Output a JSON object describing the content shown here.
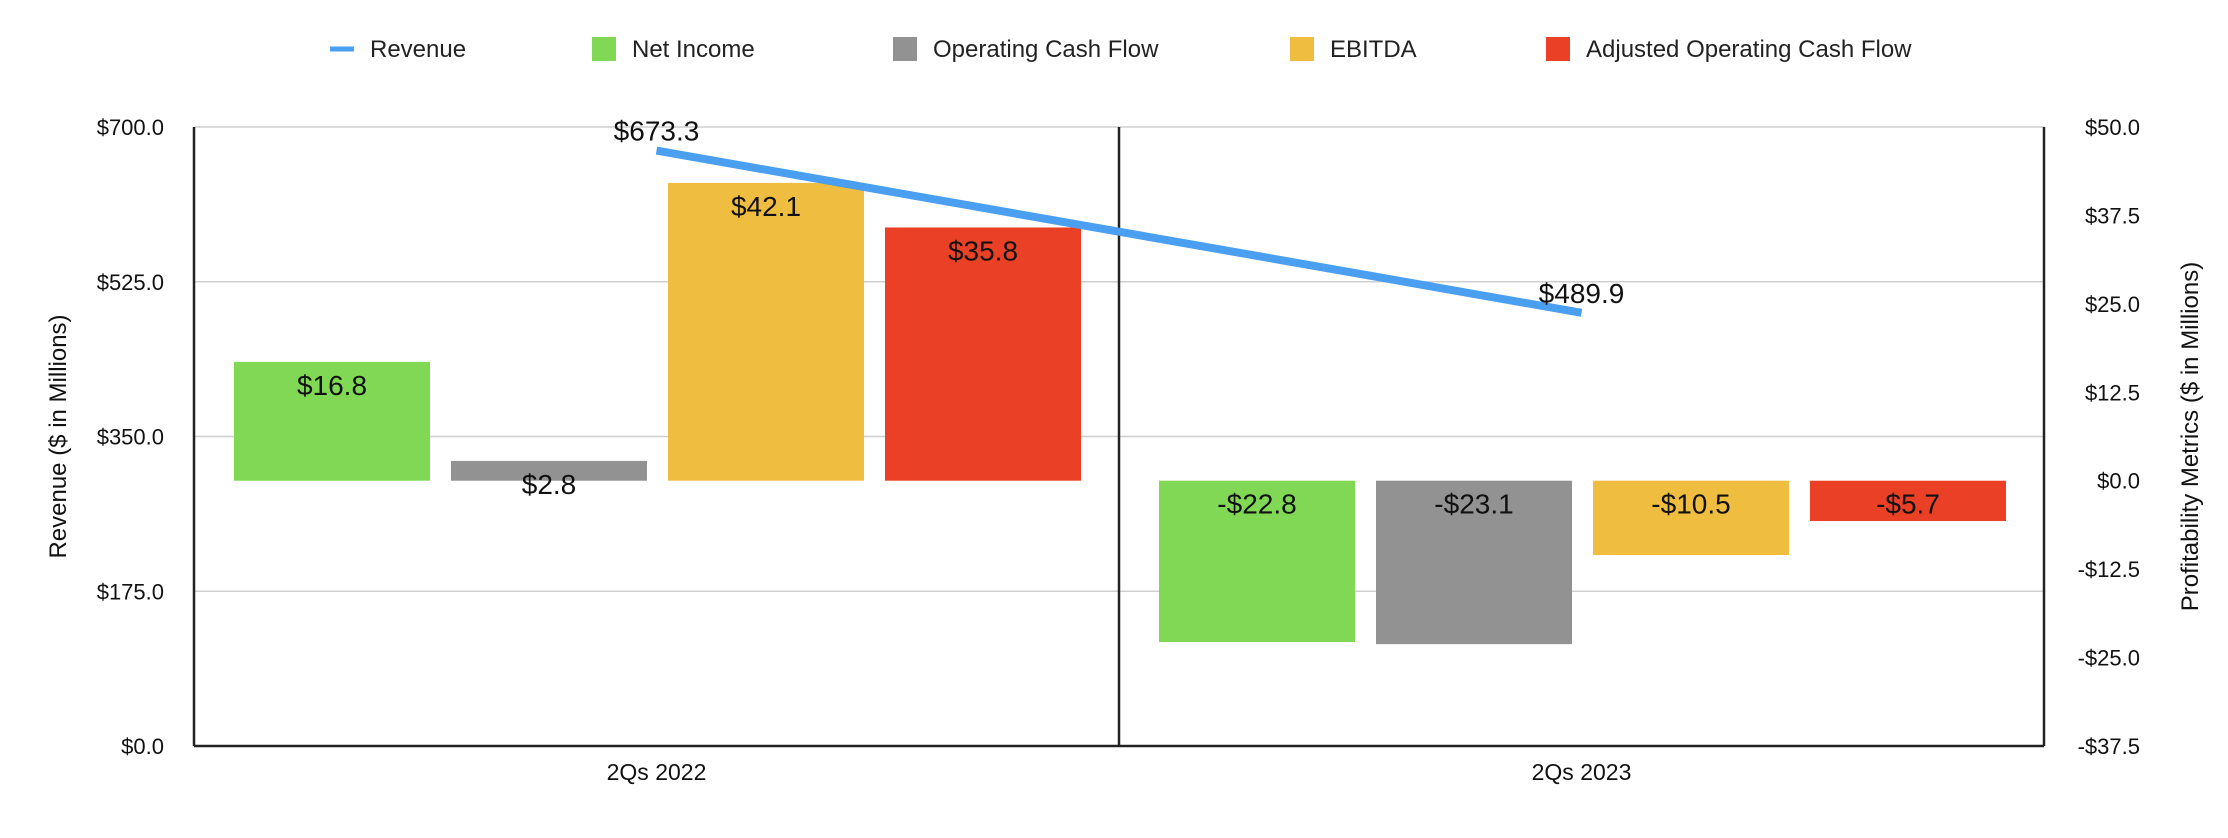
{
  "chart_data": {
    "type": "bar",
    "categories": [
      "2Qs 2022",
      "2Qs 2023"
    ],
    "line_series": {
      "name": "Revenue",
      "axis": "left",
      "color": "#4a9ff0",
      "values": [
        673.3,
        489.9
      ],
      "labels": [
        "$673.3",
        "$489.9"
      ]
    },
    "series": [
      {
        "name": "Net Income",
        "color": "#80d855",
        "values": [
          16.8,
          -22.8
        ],
        "labels": [
          "$16.8",
          "-$22.8"
        ]
      },
      {
        "name": "Operating Cash Flow",
        "color": "#929292",
        "values": [
          2.8,
          -23.1
        ],
        "labels": [
          "$2.8",
          "-$23.1"
        ]
      },
      {
        "name": "EBITDA",
        "color": "#efbd40",
        "values": [
          42.1,
          -10.5
        ],
        "labels": [
          "$42.1",
          "-$10.5"
        ]
      },
      {
        "name": "Adjusted Operating Cash Flow",
        "color": "#ea4126",
        "values": [
          35.8,
          -5.7
        ],
        "labels": [
          "$35.8",
          "-$5.7"
        ]
      }
    ],
    "ylabel_left": "Revenue ($ in Millions)",
    "ylabel_right": "Profitability Metrics ($ in Millions)",
    "ylim_left": [
      0,
      700
    ],
    "ylim_right": [
      -37.5,
      50
    ],
    "yticks_left": [
      {
        "value": 0,
        "label": "$0.0"
      },
      {
        "value": 175,
        "label": "$175.0"
      },
      {
        "value": 350,
        "label": "$350.0"
      },
      {
        "value": 525,
        "label": "$525.0"
      },
      {
        "value": 700,
        "label": "$700.0"
      }
    ],
    "yticks_right": [
      {
        "value": -37.5,
        "label": "-$37.5"
      },
      {
        "value": -25,
        "label": "-$25.0"
      },
      {
        "value": -12.5,
        "label": "-$12.5"
      },
      {
        "value": 0,
        "label": "$0.0"
      },
      {
        "value": 12.5,
        "label": "$12.5"
      },
      {
        "value": 25,
        "label": "$25.0"
      },
      {
        "value": 37.5,
        "label": "$37.5"
      },
      {
        "value": 50,
        "label": "$50.0"
      }
    ],
    "grid": true,
    "legend": "top-center"
  }
}
